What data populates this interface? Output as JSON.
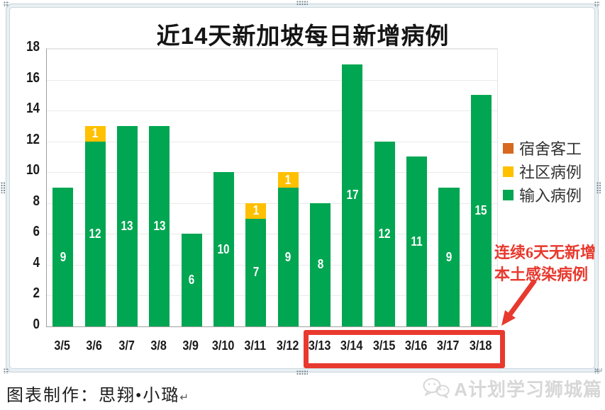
{
  "page": {
    "footer_credit": "图表制作：思翔•小璐",
    "return_mark": "↵",
    "watermark_text": "A计划学习狮城篇"
  },
  "chart_data": {
    "type": "bar",
    "stacked": true,
    "title": "近14天新加坡每日新增病例",
    "categories": [
      "3/5",
      "3/6",
      "3/7",
      "3/8",
      "3/9",
      "3/10",
      "3/11",
      "3/12",
      "3/13",
      "3/14",
      "3/15",
      "3/16",
      "3/17",
      "3/18"
    ],
    "series": [
      {
        "name": "输入病例",
        "key": "imported",
        "color": "#00A651",
        "values": [
          9,
          12,
          13,
          13,
          6,
          10,
          7,
          9,
          8,
          17,
          12,
          11,
          9,
          15
        ]
      },
      {
        "name": "社区病例",
        "key": "community",
        "color": "#FFC000",
        "values": [
          0,
          1,
          0,
          0,
          0,
          0,
          1,
          1,
          0,
          0,
          0,
          0,
          0,
          0
        ]
      },
      {
        "name": "宿舍客工",
        "key": "dormitory",
        "color": "#D6691E",
        "values": [
          0,
          0,
          0,
          0,
          0,
          0,
          0,
          0,
          0,
          0,
          0,
          0,
          0,
          0
        ]
      }
    ],
    "stack_order_bottom_to_top": [
      "输入病例",
      "社区病例",
      "宿舍客工"
    ],
    "legend": {
      "position": "right",
      "order_top_to_bottom": [
        "宿舍客工",
        "社区病例",
        "输入病例"
      ]
    },
    "ylim": [
      0,
      18
    ],
    "yticks": [
      0,
      2,
      4,
      6,
      8,
      10,
      12,
      14,
      16,
      18
    ],
    "grid": true,
    "value_labels": "inside-center-white",
    "annotation": {
      "text_lines": [
        "连续6天无新增",
        "本土感染病例"
      ],
      "color": "#E8392E",
      "highlighted_categories": [
        "3/13",
        "3/14",
        "3/15",
        "3/16",
        "3/17",
        "3/18"
      ]
    }
  }
}
